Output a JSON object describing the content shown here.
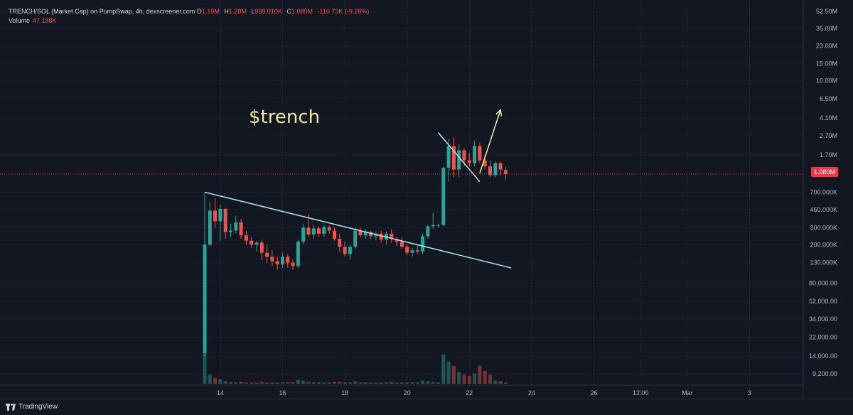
{
  "legend": {
    "pair": "TRENCH/SOL (Market Cap) on PumpSwap, 4h, dexscreener.com",
    "o_label": "O",
    "o_value": "1.19M",
    "h_label": "H",
    "h_value": "1.28M",
    "l_label": "L",
    "l_value": "938.010K",
    "c_label": "C",
    "c_value": "1.080M",
    "change": "-110.73K (-9.28%)",
    "volume_label": "Volume",
    "volume_value": "47.188K"
  },
  "annotation": {
    "text": "$trench"
  },
  "price_tag": {
    "value": "1.080M",
    "color": "#f23645"
  },
  "footer": {
    "brand": "TradingView"
  },
  "colors": {
    "up": "#26a69a",
    "down": "#ef5350",
    "trendline": "#b2ebf2",
    "arrow": "#f5f0b8",
    "text_annotation": "#f0e6a0"
  },
  "chart_data": {
    "type": "candlestick",
    "y_scale": "log",
    "ylim": [
      7000,
      60000000
    ],
    "y_ticks": [
      {
        "label": "52.50M",
        "value": 52500000
      },
      {
        "label": "35.00M",
        "value": 35000000
      },
      {
        "label": "23.00M",
        "value": 23000000
      },
      {
        "label": "15.00M",
        "value": 15000000
      },
      {
        "label": "10.00M",
        "value": 10000000
      },
      {
        "label": "6.50M",
        "value": 6500000
      },
      {
        "label": "4.10M",
        "value": 4100000
      },
      {
        "label": "2.70M",
        "value": 2700000
      },
      {
        "label": "1.70M",
        "value": 1700000
      },
      {
        "label": "700.000K",
        "value": 700000
      },
      {
        "label": "460.000K",
        "value": 460000
      },
      {
        "label": "300.000K",
        "value": 300000
      },
      {
        "label": "200.000K",
        "value": 200000
      },
      {
        "label": "130.000K",
        "value": 130000
      },
      {
        "label": "80,000.00",
        "value": 80000
      },
      {
        "label": "52,000.00",
        "value": 52000
      },
      {
        "label": "34,000.00",
        "value": 34000
      },
      {
        "label": "22,000.00",
        "value": 22000
      },
      {
        "label": "14,000.00",
        "value": 14000
      },
      {
        "label": "9,200.00",
        "value": 9200
      }
    ],
    "x_ticks": [
      {
        "label": "14",
        "bar": 3
      },
      {
        "label": "16",
        "bar": 15
      },
      {
        "label": "18",
        "bar": 27
      },
      {
        "label": "20",
        "bar": 39
      },
      {
        "label": "22",
        "bar": 51
      },
      {
        "label": "24",
        "bar": 63
      },
      {
        "label": "26",
        "bar": 75
      },
      {
        "label": "12:00",
        "bar": 84
      },
      {
        "label": "Mar",
        "bar": 93
      },
      {
        "label": "3",
        "bar": 105
      }
    ],
    "candles": [
      [
        15000,
        700000,
        14000,
        200000,
        1.0
      ],
      [
        200000,
        560000,
        190000,
        450000,
        0.14
      ],
      [
        450000,
        600000,
        300000,
        350000,
        0.09
      ],
      [
        350000,
        520000,
        220000,
        470000,
        0.07
      ],
      [
        470000,
        480000,
        230000,
        270000,
        0.04
      ],
      [
        270000,
        330000,
        240000,
        280000,
        0.03
      ],
      [
        280000,
        400000,
        260000,
        340000,
        0.02
      ],
      [
        340000,
        370000,
        230000,
        250000,
        0.03
      ],
      [
        250000,
        280000,
        200000,
        220000,
        0.02
      ],
      [
        220000,
        240000,
        185000,
        200000,
        0.02
      ],
      [
        200000,
        220000,
        170000,
        210000,
        0.02
      ],
      [
        210000,
        225000,
        140000,
        165000,
        0.03
      ],
      [
        165000,
        200000,
        130000,
        150000,
        0.02
      ],
      [
        150000,
        175000,
        120000,
        135000,
        0.02
      ],
      [
        135000,
        150000,
        110000,
        125000,
        0.02
      ],
      [
        125000,
        165000,
        115000,
        150000,
        0.02
      ],
      [
        150000,
        160000,
        115000,
        130000,
        0.02
      ],
      [
        130000,
        140000,
        110000,
        120000,
        0.02
      ],
      [
        120000,
        225000,
        115000,
        215000,
        0.06
      ],
      [
        215000,
        330000,
        200000,
        300000,
        0.05
      ],
      [
        300000,
        410000,
        240000,
        255000,
        0.03
      ],
      [
        255000,
        320000,
        230000,
        295000,
        0.02
      ],
      [
        295000,
        310000,
        240000,
        260000,
        0.02
      ],
      [
        260000,
        320000,
        240000,
        305000,
        0.02
      ],
      [
        305000,
        315000,
        260000,
        280000,
        0.02
      ],
      [
        280000,
        300000,
        220000,
        230000,
        0.03
      ],
      [
        230000,
        260000,
        170000,
        190000,
        0.03
      ],
      [
        190000,
        215000,
        150000,
        160000,
        0.02
      ],
      [
        160000,
        200000,
        140000,
        190000,
        0.02
      ],
      [
        190000,
        300000,
        180000,
        280000,
        0.04
      ],
      [
        280000,
        300000,
        240000,
        250000,
        0.02
      ],
      [
        250000,
        290000,
        230000,
        270000,
        0.02
      ],
      [
        270000,
        280000,
        230000,
        245000,
        0.02
      ],
      [
        245000,
        275000,
        220000,
        260000,
        0.02
      ],
      [
        260000,
        280000,
        210000,
        225000,
        0.02
      ],
      [
        225000,
        275000,
        200000,
        260000,
        0.02
      ],
      [
        260000,
        290000,
        210000,
        230000,
        0.03
      ],
      [
        230000,
        240000,
        195000,
        215000,
        0.02
      ],
      [
        215000,
        240000,
        180000,
        190000,
        0.02
      ],
      [
        190000,
        200000,
        155000,
        165000,
        0.02
      ],
      [
        165000,
        185000,
        150000,
        175000,
        0.02
      ],
      [
        175000,
        200000,
        160000,
        170000,
        0.02
      ],
      [
        170000,
        260000,
        160000,
        245000,
        0.05
      ],
      [
        245000,
        320000,
        230000,
        310000,
        0.04
      ],
      [
        310000,
        430000,
        290000,
        320000,
        0.03
      ],
      [
        320000,
        330000,
        300000,
        320000,
        0.02
      ],
      [
        320000,
        1300000,
        310000,
        1250000,
        0.46
      ],
      [
        1250000,
        2500000,
        900000,
        2100000,
        0.35
      ],
      [
        2100000,
        2600000,
        1000000,
        1200000,
        0.28
      ],
      [
        1200000,
        2200000,
        1000000,
        1900000,
        0.18
      ],
      [
        1900000,
        2000000,
        1300000,
        1500000,
        0.14
      ],
      [
        1500000,
        1800000,
        1300000,
        1400000,
        0.12
      ],
      [
        1400000,
        2400000,
        1300000,
        2100000,
        0.16
      ],
      [
        2100000,
        2300000,
        1400000,
        1500000,
        0.28
      ],
      [
        1500000,
        1700000,
        1200000,
        1300000,
        0.2
      ],
      [
        1300000,
        1500000,
        1000000,
        1050000,
        0.14
      ],
      [
        1050000,
        1450000,
        1000000,
        1400000,
        0.05
      ],
      [
        1400000,
        1450000,
        1050000,
        1200000,
        0.04
      ],
      [
        1190000,
        1280000,
        938010,
        1080000,
        0.02
      ]
    ],
    "trendlines": [
      {
        "name": "descending-resistance",
        "from": {
          "bar": 0,
          "value": 700000
        },
        "to": {
          "bar": 59,
          "value": 115000
        }
      },
      {
        "name": "flag-resistance",
        "from": {
          "bar": 45,
          "value": 2900000
        },
        "to": {
          "bar": 53,
          "value": 900000
        }
      }
    ],
    "arrow": {
      "from": {
        "bar": 53,
        "value": 1100000
      },
      "to": {
        "bar": 57,
        "value": 5000000
      }
    },
    "last_price": 1080000
  }
}
